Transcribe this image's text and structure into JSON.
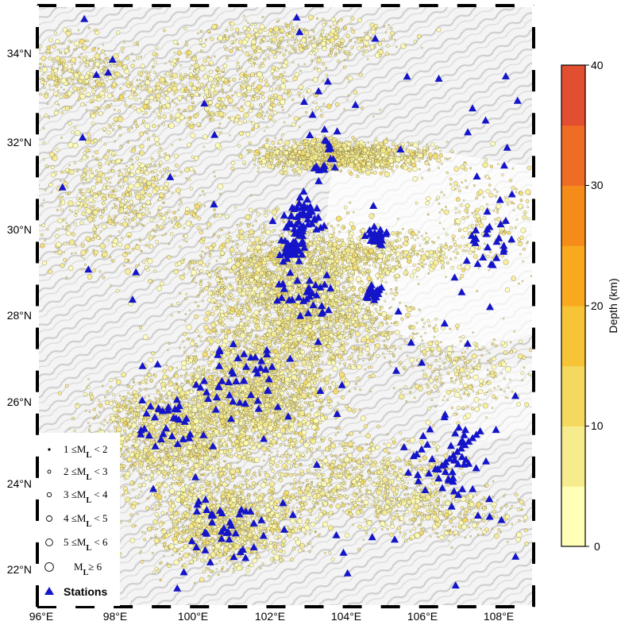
{
  "map": {
    "lon_range": [
      96,
      109
    ],
    "lat_range": [
      21,
      35
    ],
    "lon_ticks": [
      "96°E",
      "98°E",
      "100°E",
      "102°E",
      "104°E",
      "106°E",
      "108°E"
    ],
    "lat_ticks": [
      "22°N",
      "24°N",
      "26°N",
      "28°N",
      "30°N",
      "32°N",
      "34°N"
    ]
  },
  "colorbar": {
    "label": "Depth (km)",
    "ticks": [
      "0",
      "10",
      "20",
      "30",
      "40"
    ],
    "range": [
      0,
      40
    ],
    "colors": [
      "#ffffb5",
      "#f7ec8d",
      "#f5d95e",
      "#f6c436",
      "#f9a91d",
      "#f58c1a",
      "#ef6c24",
      "#e14e30"
    ]
  },
  "legend": {
    "items": [
      {
        "pre": "1 ≤M",
        "sub": "L",
        "post": " < 2"
      },
      {
        "pre": "2 ≤M",
        "sub": "L",
        "post": " < 3"
      },
      {
        "pre": "3 ≤M",
        "sub": "L",
        "post": " < 4"
      },
      {
        "pre": "4 ≤M",
        "sub": "L",
        "post": " < 5"
      },
      {
        "pre": "5 ≤M",
        "sub": "L",
        "post": " < 6"
      },
      {
        "pre": "M",
        "sub": "L",
        "post": "≥ 6"
      }
    ],
    "stations_label": "Stations"
  },
  "colors": {
    "station": "#1414c8",
    "event_stroke": "#5a4a1e"
  }
}
